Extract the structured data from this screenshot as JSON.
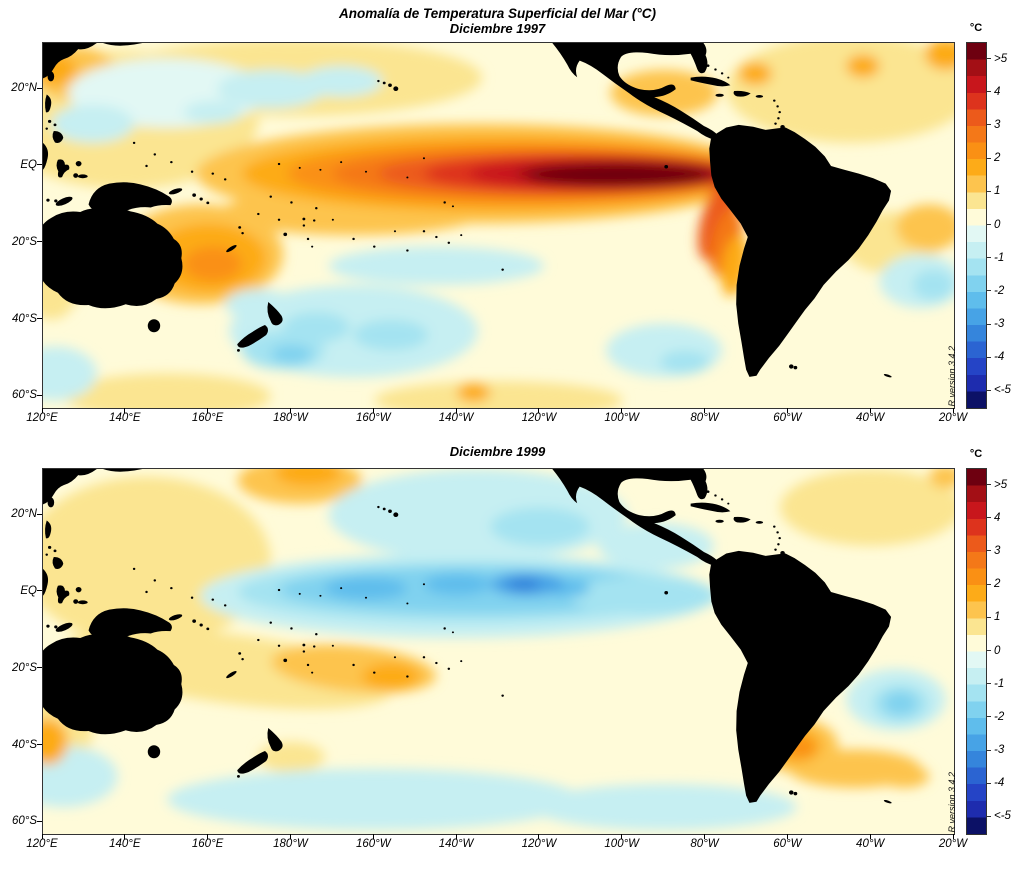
{
  "header": {
    "title": "Anomalía de Temperatura Superficial del Mar (°C)",
    "panel1_subtitle": "Diciembre 1997",
    "panel2_subtitle": "Diciembre 1999"
  },
  "colorbar": {
    "unit": "°C",
    "tick_labels": [
      ">5",
      "4",
      "3",
      "2",
      "1",
      "0",
      "-1",
      "-2",
      "-3",
      "-4",
      "<-5"
    ],
    "tick_values": [
      5,
      4,
      3,
      2,
      1,
      0,
      -1,
      -2,
      -3,
      -4,
      -5
    ],
    "palette_top_to_bottom": [
      "#6e0010",
      "#a30f15",
      "#c8161c",
      "#dd331d",
      "#ec5a1b",
      "#f47818",
      "#fa9014",
      "#fdab18",
      "#fdc44e",
      "#fbe591",
      "#fffbd9",
      "#e2f8f4",
      "#c6eff2",
      "#a4e3f1",
      "#80d2ef",
      "#5fbdec",
      "#47a3e6",
      "#3585dc",
      "#2b64d2",
      "#2544c6",
      "#0c1166"
    ],
    "band_step_degC": 0.5,
    "annotation": "R version 3.4.2"
  },
  "axes": {
    "lat": {
      "labels": [
        "20°N",
        "EQ",
        "20°S",
        "40°S",
        "60°S"
      ],
      "deg_from_top": [
        12,
        32,
        52,
        72,
        92
      ]
    },
    "lon": {
      "labels": [
        "120°E",
        "140°E",
        "160°E",
        "180°W",
        "160°W",
        "140°W",
        "120°W",
        "100°W",
        "80°W",
        "60°W",
        "40°W",
        "20°W"
      ],
      "deg_from_left": [
        0,
        20,
        40,
        60,
        80,
        100,
        120,
        140,
        160,
        180,
        200,
        220
      ]
    }
  },
  "chart_data": {
    "type": "heatmap",
    "title": "Anomalía de Temperatura Superficial del Mar (°C)",
    "unit": "°C",
    "value_range": [
      -5,
      5
    ],
    "contour_interval_degC": 0.5,
    "map_extent": {
      "lon_left": "120°E",
      "lon_right": "20°W",
      "lat_top": "~32°N",
      "lat_bottom": "~63°S"
    },
    "land_color": "#000000",
    "ocean_base_anomaly": 0.25,
    "coord_note": "blob format [x,y,rx,ry,value,rot?]; x = degrees east of 120°E (0–220), y = degrees south of ~32°N (0–95)",
    "panels": [
      {
        "subtitle": "Diciembre 1997",
        "pattern": "strong warm (El Niño) tongue along the equatorial Pacific reaching the South American coast",
        "peak_anomaly_degC": ">5",
        "peak_location": "equator, ~140°W to 85°W",
        "anomaly_blobs": [
          [
            20,
            20,
            32,
            18,
            0.75
          ],
          [
            60,
            9,
            46,
            10,
            0.75
          ],
          [
            195,
            12,
            30,
            14,
            0.75
          ],
          [
            205,
            52,
            12,
            8,
            0.75
          ],
          [
            2,
            62,
            7,
            10,
            0.75
          ],
          [
            30,
            92,
            25,
            6,
            0.75
          ],
          [
            110,
            93,
            30,
            5,
            0.75
          ],
          [
            75,
            44,
            32,
            6,
            1.25
          ],
          [
            38,
            55,
            20,
            13,
            1.25
          ],
          [
            8,
            8,
            10,
            7,
            1.25
          ],
          [
            150,
            13,
            13,
            6,
            1.25
          ],
          [
            214,
            48,
            8,
            6,
            1.25
          ],
          [
            30,
            13,
            24,
            9,
            -0.25
          ],
          [
            41,
            18,
            7,
            3,
            -0.75
          ],
          [
            55,
            12,
            13,
            5,
            -0.75
          ],
          [
            72,
            10,
            10,
            4,
            -0.75
          ],
          [
            12,
            21,
            10,
            5,
            -0.75
          ],
          [
            95,
            58,
            26,
            5,
            -0.5
          ],
          [
            75,
            75,
            30,
            12,
            -0.75
          ],
          [
            3,
            86,
            10,
            7,
            -0.75
          ],
          [
            150,
            80,
            14,
            7,
            -0.75
          ],
          [
            212,
            62,
            10,
            7,
            -0.75
          ],
          [
            52,
            68,
            8,
            4,
            -0.75
          ],
          [
            58,
            80,
            10,
            5,
            -1.25
          ],
          [
            66,
            74,
            8,
            4,
            -1.25
          ],
          [
            84,
            76,
            9,
            4,
            -1.25
          ],
          [
            155,
            83,
            6,
            3,
            -1.25
          ],
          [
            215,
            63,
            5,
            4,
            -1.25
          ],
          [
            60,
            81,
            5,
            2.5,
            -1.75
          ],
          [
            3,
            7,
            5,
            4,
            1.75
          ],
          [
            172,
            8,
            4,
            3,
            1.75
          ],
          [
            198,
            6,
            4,
            3,
            1.75
          ],
          [
            218,
            3,
            5,
            4,
            1.75
          ],
          [
            40,
            56,
            14,
            9,
            1.75
          ],
          [
            41,
            57.5,
            7,
            4.5,
            2.25
          ],
          [
            104,
            91,
            4,
            2.5,
            1.75
          ],
          [
            105,
            34,
            68,
            13,
            1.25
          ],
          [
            110,
            34,
            62,
            10,
            1.75
          ],
          [
            115,
            34,
            56,
            8,
            2.25
          ],
          [
            120,
            34,
            50,
            6.5,
            2.75
          ],
          [
            125,
            34,
            44,
            5.5,
            3.25
          ],
          [
            130,
            34,
            38,
            4.8,
            3.75
          ],
          [
            135,
            34,
            32,
            4.2,
            4.25
          ],
          [
            140,
            34,
            26,
            3.6,
            4.75
          ],
          [
            139,
            34.5,
            22,
            2.9,
            5.25
          ],
          [
            163,
            46,
            4,
            11,
            3.25,
            15
          ],
          [
            165,
            52,
            3.5,
            9,
            2.75,
            12
          ],
          [
            167,
            58,
            3,
            8,
            1.75,
            8
          ]
        ]
      },
      {
        "subtitle": "Diciembre 1999",
        "pattern": "cool (La Niña) tongue along the equatorial Pacific",
        "peak_anomaly_degC": "-3 to -3.5",
        "peak_location": "equator, ~170°W to 110°W",
        "anomaly_blobs": [
          [
            25,
            24,
            30,
            22,
            0.75
          ],
          [
            200,
            10,
            22,
            10,
            0.75
          ],
          [
            45,
            52,
            40,
            9,
            0.75,
            8
          ],
          [
            3,
            68,
            9,
            10,
            0.75
          ],
          [
            60,
            75,
            8,
            4,
            0.75
          ],
          [
            85,
            88,
            10,
            3,
            0.75
          ],
          [
            62,
            3,
            15,
            6,
            1.25
          ],
          [
            105,
            12,
            36,
            12,
            -0.75
          ],
          [
            148,
            20,
            14,
            6,
            -0.75
          ],
          [
            5,
            80,
            13,
            8,
            -0.75
          ],
          [
            80,
            86,
            50,
            8,
            -0.75
          ],
          [
            150,
            88,
            32,
            6,
            -0.75
          ],
          [
            206,
            60,
            12,
            8,
            -0.75
          ],
          [
            120,
            15,
            12,
            5,
            -1.25
          ],
          [
            207,
            61,
            7,
            5,
            -1.25
          ],
          [
            207,
            61,
            4,
            3,
            -1.75
          ],
          [
            64,
            1,
            8,
            3.5,
            1.75
          ],
          [
            75,
            52,
            20,
            6,
            1.25,
            6
          ],
          [
            84,
            54,
            7,
            3.5,
            1.75
          ],
          [
            1,
            71,
            5,
            6,
            1.75
          ],
          [
            182,
            72,
            10,
            7,
            1.25
          ],
          [
            196,
            78,
            16,
            5,
            1.25
          ],
          [
            208,
            80,
            6,
            3,
            1.25
          ],
          [
            218,
            2,
            4,
            3,
            1.25
          ],
          [
            182,
            72,
            6,
            4.5,
            1.75
          ],
          [
            183,
            72.5,
            3.5,
            2.5,
            2.25
          ],
          [
            100,
            33,
            62,
            11,
            -0.75
          ],
          [
            102,
            32,
            55,
            8,
            -1.25
          ],
          [
            105,
            31.5,
            48,
            6,
            -1.75
          ],
          [
            145,
            33,
            18,
            5,
            -1.25
          ],
          [
            78,
            31,
            10,
            3,
            -2.25
          ],
          [
            100,
            30,
            8,
            2.8,
            -2.25
          ],
          [
            127,
            31,
            5,
            2.2,
            -2.25
          ],
          [
            117,
            30,
            9,
            3,
            -2.75
          ],
          [
            116,
            30,
            4,
            1.8,
            -3.25
          ]
        ]
      }
    ]
  }
}
